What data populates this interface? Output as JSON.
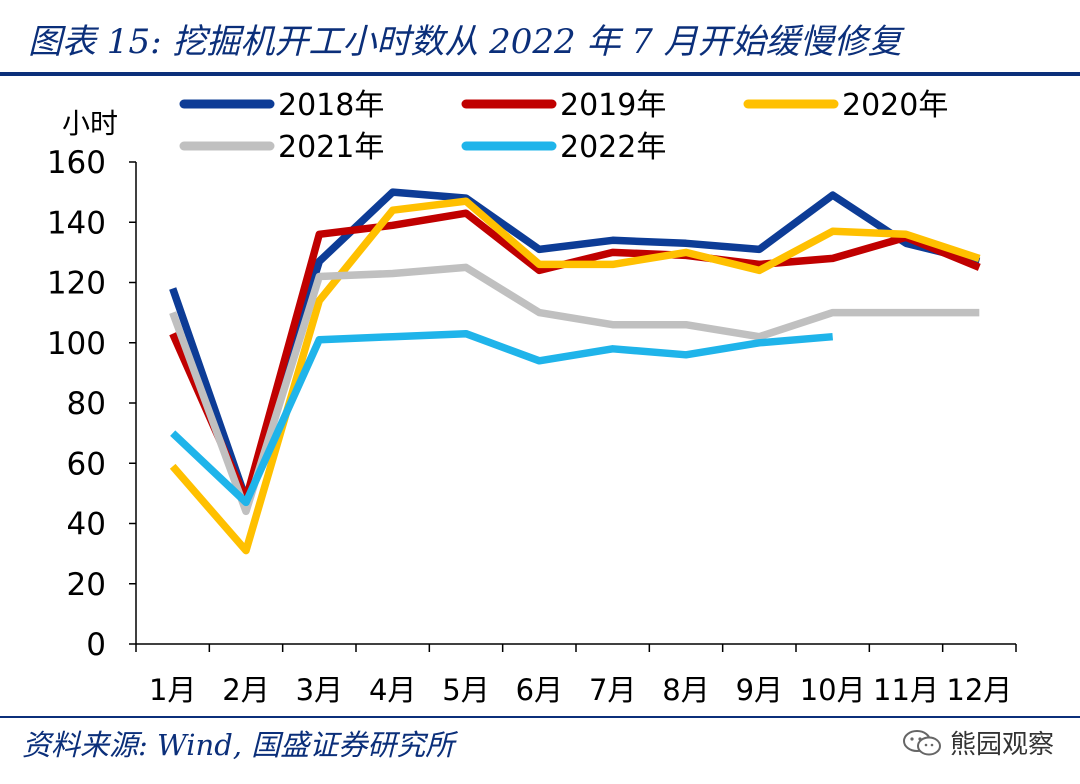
{
  "header": {
    "title": "图表 15: 挖掘机开工小时数从 2022 年 7 月开始缓慢修复"
  },
  "footer": {
    "source": "资料来源: Wind, 国盛证券研究所",
    "watermark": "熊园观察"
  },
  "chart_data": {
    "type": "line",
    "y_unit_label": "小时",
    "ylim": [
      0,
      160
    ],
    "y_ticks": [
      0,
      20,
      40,
      60,
      80,
      100,
      120,
      140,
      160
    ],
    "categories": [
      "1月",
      "2月",
      "3月",
      "4月",
      "5月",
      "6月",
      "7月",
      "8月",
      "9月",
      "10月",
      "11月",
      "12月"
    ],
    "grid": false,
    "legend_position": "top",
    "series": [
      {
        "name": "2018年",
        "color": "#0d3c96",
        "values": [
          118,
          48,
          127,
          150,
          148,
          131,
          134,
          133,
          131,
          149,
          133,
          127
        ]
      },
      {
        "name": "2019年",
        "color": "#c00000",
        "values": [
          103,
          48,
          136,
          139,
          143,
          124,
          130,
          129,
          126,
          128,
          135,
          125
        ]
      },
      {
        "name": "2020年",
        "color": "#ffc000",
        "values": [
          59,
          31,
          114,
          144,
          147,
          126,
          126,
          130,
          124,
          137,
          136,
          128
        ]
      },
      {
        "name": "2021年",
        "color": "#c0c0c0",
        "values": [
          110,
          44,
          122,
          123,
          125,
          110,
          106,
          106,
          102,
          110,
          110,
          110
        ]
      },
      {
        "name": "2022年",
        "color": "#1fb4ea",
        "values": [
          70,
          47,
          101,
          102,
          103,
          94,
          98,
          96,
          100,
          102,
          null,
          null
        ]
      }
    ]
  }
}
